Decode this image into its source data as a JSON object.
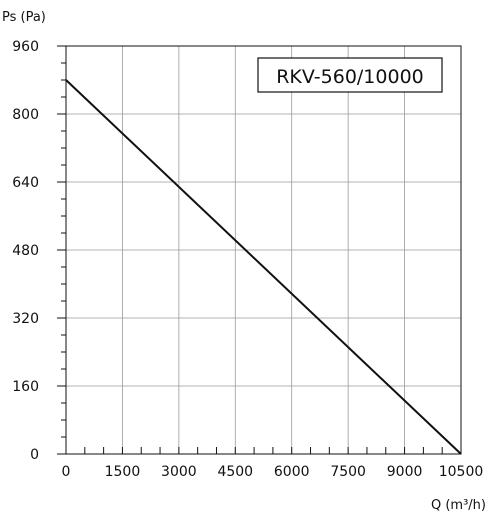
{
  "chart_data": {
    "type": "line",
    "title": "RKV-560/10000",
    "xlabel": "Q (m³/h)",
    "ylabel": "Ps (Pa)",
    "xlim": [
      0,
      10500
    ],
    "ylim": [
      0,
      960
    ],
    "x_ticks": [
      0,
      1500,
      3000,
      4500,
      6000,
      7500,
      9000,
      10500
    ],
    "y_ticks": [
      0,
      160,
      320,
      480,
      640,
      800,
      960
    ],
    "x_tick_labels": [
      "0",
      "1500",
      "3000",
      "4500",
      "6000",
      "7500",
      "9000",
      "10500"
    ],
    "y_tick_labels": [
      "0",
      "160",
      "320",
      "480",
      "640",
      "800",
      "960"
    ],
    "grid": true,
    "series": [
      {
        "x": [
          0,
          10500
        ],
        "y": [
          880,
          0
        ],
        "color": "#111111"
      }
    ]
  }
}
